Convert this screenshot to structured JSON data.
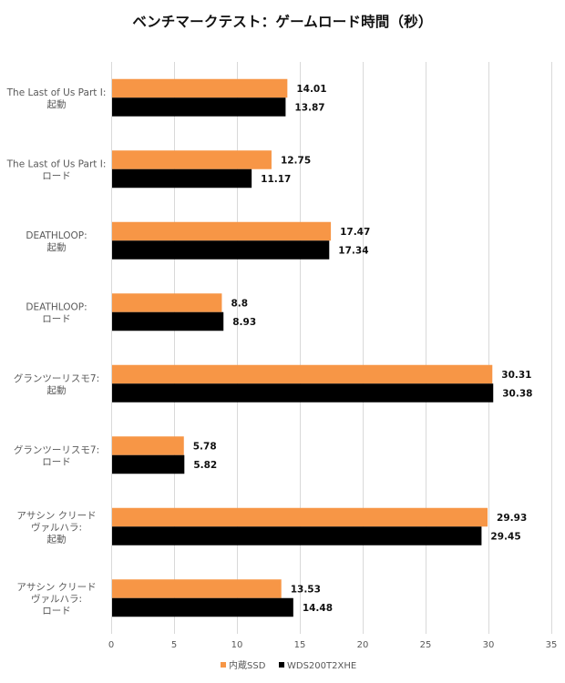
{
  "chart_data": {
    "type": "bar",
    "orientation": "horizontal",
    "title": "ベンチマークテスト：ゲームロード時間（秒）",
    "xlabel": "",
    "ylabel": "",
    "xlim": [
      0,
      35
    ],
    "x_ticks": [
      "0",
      "5",
      "10",
      "15",
      "20",
      "25",
      "30",
      "35"
    ],
    "grid": "vertical",
    "legend_position": "bottom",
    "categories": [
      [
        "The Last of Us Part I:",
        "起動"
      ],
      [
        "The Last of Us Part I:",
        "ロード"
      ],
      [
        "DEATHLOOP:",
        "起動"
      ],
      [
        "DEATHLOOP:",
        "ロード"
      ],
      [
        "グランツーリスモ7:",
        "起動"
      ],
      [
        "グランツーリスモ7:",
        "ロード"
      ],
      [
        "アサシン クリード",
        "ヴァルハラ:",
        "起動"
      ],
      [
        "アサシン クリード",
        "ヴァルハラ:",
        "ロード"
      ]
    ],
    "series": [
      {
        "name": "内蔵SSD",
        "color": "#F79646",
        "values": [
          14.01,
          12.75,
          17.47,
          8.8,
          30.31,
          5.78,
          29.93,
          13.53
        ],
        "labels": [
          "14.01",
          "12.75",
          "17.47",
          "8.8",
          "30.31",
          "5.78",
          "29.93",
          "13.53"
        ]
      },
      {
        "name": "WDS200T2XHE",
        "color": "#000000",
        "values": [
          13.87,
          11.17,
          17.34,
          8.93,
          30.38,
          5.82,
          29.45,
          14.48
        ],
        "labels": [
          "13.87",
          "11.17",
          "17.34",
          "8.93",
          "30.38",
          "5.82",
          "29.45",
          "14.48"
        ]
      }
    ]
  },
  "colors": {
    "gridline": "#D9D9D9",
    "axis_text": "#595959"
  }
}
